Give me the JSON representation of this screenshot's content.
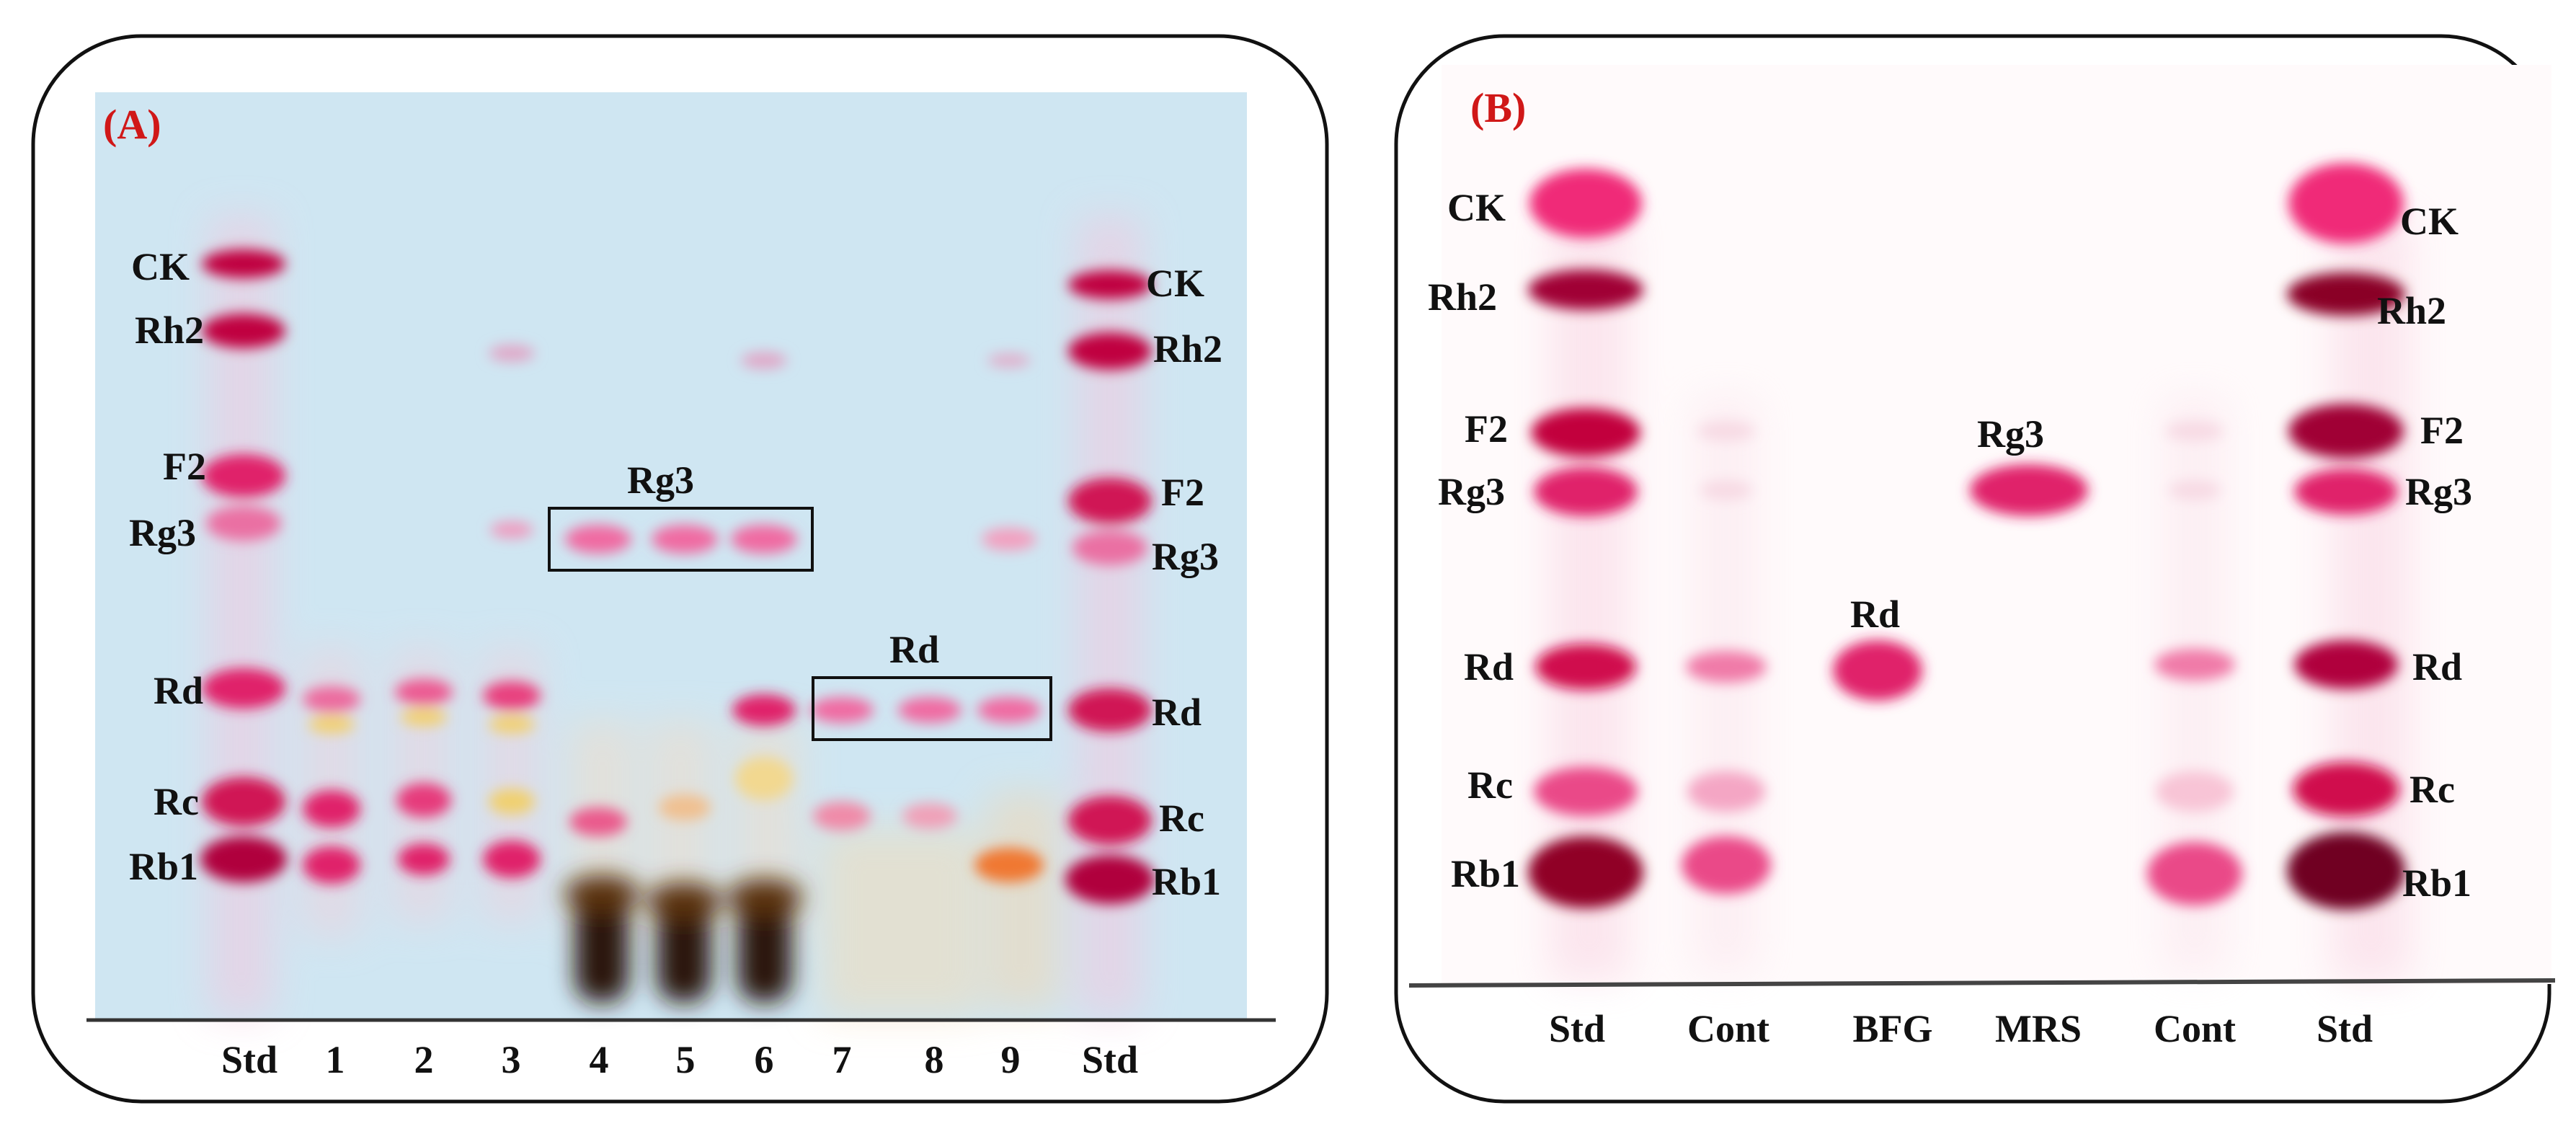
{
  "panel_a": {
    "tag": "(A)",
    "tag_color": "#d01818",
    "plate_color": "#cfe6f2",
    "band_color": "#e0226a",
    "lanes": [
      "Std",
      "1",
      "2",
      "3",
      "4",
      "5",
      "6",
      "7",
      "8",
      "9",
      "Std"
    ],
    "left_labels": [
      "CK",
      "Rh2",
      "F2",
      "Rg3",
      "Rd",
      "Rc",
      "Rb1"
    ],
    "right_labels": [
      "CK",
      "Rh2",
      "F2",
      "Rg3",
      "Rd",
      "Rc",
      "Rb1"
    ],
    "boxes": [
      {
        "label": "Rg3",
        "lanes": [
          "4",
          "5",
          "6"
        ]
      },
      {
        "label": "Rd",
        "lanes": [
          "7",
          "8",
          "9"
        ]
      }
    ]
  },
  "panel_b": {
    "tag": "(B)",
    "tag_color": "#d01818",
    "plate_color": "#ffffff",
    "band_color": "#e0226a",
    "lanes": [
      "Std",
      "Cont",
      "BFG",
      "MRS",
      "Cont",
      "Std"
    ],
    "left_labels": [
      "CK",
      "Rh2",
      "F2",
      "Rg3",
      "Rd",
      "Rc",
      "Rb1"
    ],
    "right_labels": [
      "CK",
      "Rh2",
      "F2",
      "Rg3",
      "Rd",
      "Rc",
      "Rb1"
    ],
    "spot_labels": [
      "Rd",
      "Rg3"
    ]
  }
}
